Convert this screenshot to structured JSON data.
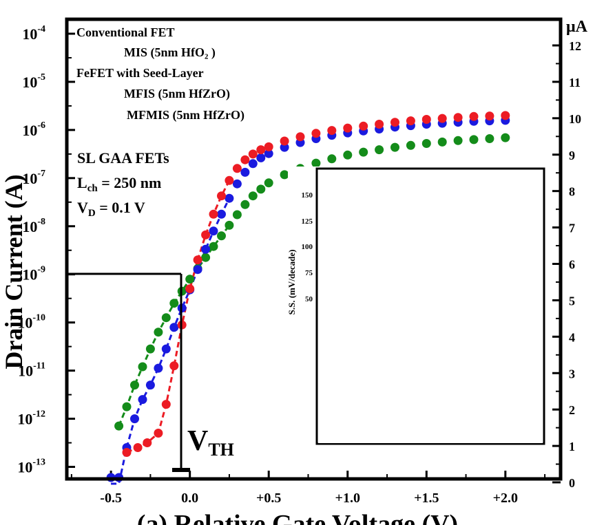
{
  "chart_data": {
    "type": "scatter",
    "x_label": "(a) Relative Gate Voltage (V)",
    "y_label": "Drain Current (A)",
    "y_scale": "log",
    "x_range": [
      -0.78,
      2.35
    ],
    "y_log_range": [
      -13.25,
      -3.7
    ],
    "x_ticks": [
      "-0.5",
      "0.0",
      "+0.5",
      "+1.0",
      "+1.5",
      "+2.0"
    ],
    "y_ticks_left": [
      {
        "base": "10",
        "exp": "-4"
      },
      {
        "base": "10",
        "exp": "-5"
      },
      {
        "base": "10",
        "exp": "-6"
      },
      {
        "base": "10",
        "exp": "-7"
      },
      {
        "base": "10",
        "exp": "-8"
      },
      {
        "base": "10",
        "exp": "-9"
      },
      {
        "base": "10",
        "exp": "-10"
      },
      {
        "base": "10",
        "exp": "-11"
      },
      {
        "base": "10",
        "exp": "-12"
      },
      {
        "base": "10",
        "exp": "-13"
      }
    ],
    "right_axis_unit": "μA",
    "right_axis_ticks": [
      "0",
      "1",
      "2",
      "3",
      "4",
      "5",
      "6",
      "7",
      "8",
      "9",
      "10",
      "11",
      "12"
    ],
    "legend": {
      "group1_header": "Conventional FET",
      "group1_items": [
        "MIS     (5nm HfO₂ )"
      ],
      "group2_header": "FeFET with Seed-Layer",
      "group2_items": [
        "MFIS    (5nm HfZrO)",
        "MFMIS (5nm HfZrO)"
      ]
    },
    "annotations": {
      "device": "SL GAA FETs",
      "lch_main": "L",
      "lch_sub": "ch",
      "lch_value": " = 250 nm",
      "vd_main": "V",
      "vd_sub": "D",
      "vd_value": " = 0.1 V",
      "vth_main": "V",
      "vth_sub": "TH"
    },
    "inset": {
      "y_label": "S.S. (mV/decade)",
      "y_ticks": [
        "150",
        "125",
        "100",
        "75",
        "50"
      ]
    },
    "series": [
      {
        "color": "#ec1c24",
        "x": [
          -0.4,
          -0.33,
          -0.27,
          -0.2,
          -0.15,
          -0.1,
          -0.05,
          0.0,
          0.05,
          0.1,
          0.15,
          0.2,
          0.25,
          0.3,
          0.35,
          0.4,
          0.45,
          0.5,
          0.6,
          0.7,
          0.8,
          0.9,
          1.0,
          1.1,
          1.2,
          1.3,
          1.4,
          1.5,
          1.6,
          1.7,
          1.8,
          1.9,
          2.0
        ],
        "log_y": [
          -12.7,
          -12.6,
          -12.5,
          -12.3,
          -11.7,
          -10.9,
          -10.05,
          -9.3,
          -8.7,
          -8.18,
          -7.75,
          -7.37,
          -7.05,
          -6.8,
          -6.62,
          -6.5,
          -6.41,
          -6.35,
          -6.23,
          -6.14,
          -6.07,
          -6.01,
          -5.96,
          -5.92,
          -5.88,
          -5.84,
          -5.81,
          -5.78,
          -5.76,
          -5.74,
          -5.72,
          -5.71,
          -5.7
        ]
      },
      {
        "color": "#1a1adf",
        "x": [
          -0.5,
          -0.45,
          -0.4,
          -0.35,
          -0.3,
          -0.25,
          -0.2,
          -0.15,
          -0.1,
          -0.05,
          0.0,
          0.05,
          0.1,
          0.15,
          0.2,
          0.25,
          0.3,
          0.35,
          0.4,
          0.45,
          0.5,
          0.6,
          0.7,
          0.8,
          0.9,
          1.0,
          1.1,
          1.2,
          1.3,
          1.4,
          1.5,
          1.6,
          1.7,
          1.8,
          1.9,
          2.0
        ],
        "log_y": [
          -13.35,
          -13.35,
          -12.6,
          -12.0,
          -11.6,
          -11.3,
          -10.95,
          -10.55,
          -10.1,
          -9.7,
          -9.32,
          -8.9,
          -8.48,
          -8.1,
          -7.75,
          -7.42,
          -7.12,
          -6.88,
          -6.7,
          -6.58,
          -6.49,
          -6.36,
          -6.26,
          -6.18,
          -6.11,
          -6.06,
          -6.02,
          -5.98,
          -5.94,
          -5.91,
          -5.88,
          -5.86,
          -5.84,
          -5.82,
          -5.81,
          -5.8
        ]
      },
      {
        "color": "#148c1a",
        "x": [
          -0.45,
          -0.4,
          -0.35,
          -0.3,
          -0.25,
          -0.2,
          -0.15,
          -0.1,
          -0.05,
          0.0,
          0.05,
          0.1,
          0.15,
          0.2,
          0.25,
          0.3,
          0.35,
          0.4,
          0.45,
          0.5,
          0.6,
          0.7,
          0.8,
          0.9,
          1.0,
          1.1,
          1.2,
          1.3,
          1.4,
          1.5,
          1.6,
          1.7,
          1.8,
          1.9,
          2.0
        ],
        "log_y": [
          -12.15,
          -11.75,
          -11.3,
          -10.92,
          -10.55,
          -10.2,
          -9.9,
          -9.6,
          -9.35,
          -9.1,
          -8.88,
          -8.65,
          -8.42,
          -8.2,
          -7.98,
          -7.76,
          -7.55,
          -7.37,
          -7.23,
          -7.1,
          -6.93,
          -6.8,
          -6.69,
          -6.6,
          -6.52,
          -6.46,
          -6.41,
          -6.36,
          -6.32,
          -6.28,
          -6.25,
          -6.22,
          -6.2,
          -6.18,
          -6.16,
          -6.14
        ]
      }
    ]
  }
}
